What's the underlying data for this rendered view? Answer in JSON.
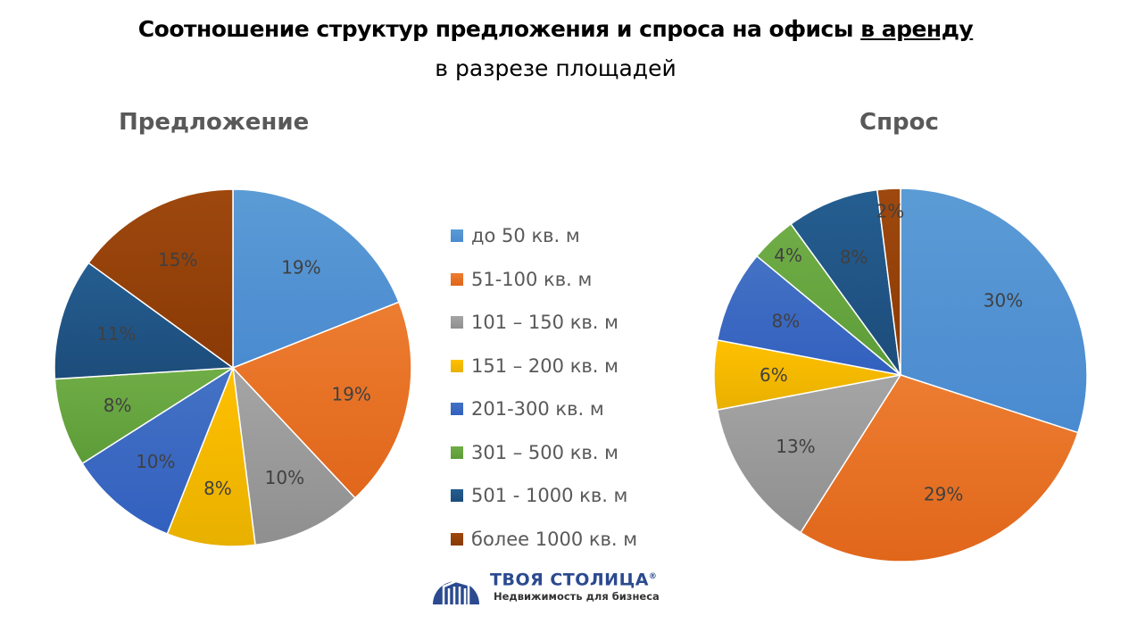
{
  "header": {
    "title_main": "Соотношение структур предложения и спроса на офисы ",
    "title_underlined": "в аренду",
    "subtitle": "в разрезе площадей"
  },
  "legend": [
    "до 50 кв. м",
    "51-100 кв. м",
    "101 – 150 кв. м",
    "151 – 200 кв. м",
    "201-300 кв. м",
    "301 – 500 кв. м",
    "501 - 1000 кв. м",
    "более 1000 кв. м"
  ],
  "colors": [
    "#5b9bd5",
    "#ed7d31",
    "#a5a5a5",
    "#ffc000",
    "#4472c4",
    "#70ad47",
    "#255e91",
    "#9e480e"
  ],
  "colors_dark": [
    "#4a8ad0",
    "#e0661a",
    "#8f8f8f",
    "#e8b000",
    "#3260bf",
    "#5c9c37",
    "#1c4c7a",
    "#8a3a06"
  ],
  "chart_data": [
    {
      "type": "pie",
      "title": "Предложение",
      "categories": [
        "до 50 кв. м",
        "51-100 кв. м",
        "101 – 150 кв. м",
        "151 – 200 кв. м",
        "201-300 кв. м",
        "301 – 500 кв. м",
        "501 - 1000 кв. м",
        "более 1000 кв. м"
      ],
      "values": [
        19,
        19,
        10,
        8,
        10,
        8,
        11,
        15
      ],
      "labels": [
        "19%",
        "19%",
        "10%",
        "8%",
        "10%",
        "8%",
        "11%",
        "15%"
      ]
    },
    {
      "type": "pie",
      "title": "Спрос",
      "categories": [
        "до 50 кв. м",
        "51-100 кв. м",
        "101 – 150 кв. м",
        "151 – 200 кв. м",
        "201-300 кв. м",
        "301 – 500 кв. м",
        "501 - 1000 кв. м",
        "более 1000 кв. м"
      ],
      "values": [
        30,
        29,
        13,
        6,
        8,
        4,
        8,
        2
      ],
      "labels": [
        "30%",
        "29%",
        "13%",
        "6%",
        "8%",
        "4%",
        "8%",
        "2%"
      ]
    }
  ],
  "logo": {
    "brand": "ТВОЯ СТОЛИЦА",
    "registered": "®",
    "tagline": "Недвижимость для бизнеса"
  }
}
